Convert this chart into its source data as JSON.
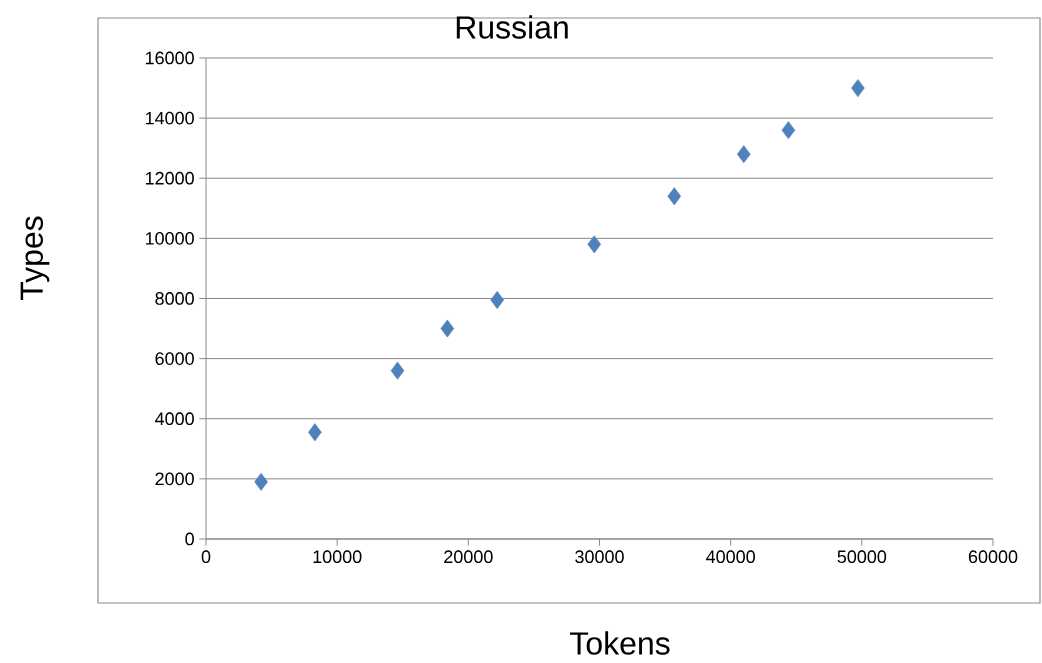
{
  "chart_data": {
    "type": "scatter",
    "title": "Russian",
    "xlabel": "Tokens",
    "ylabel": "Types",
    "x": [
      4200,
      8300,
      14600,
      18400,
      22200,
      29600,
      35700,
      41000,
      44400,
      49700
    ],
    "series": [
      {
        "color": "#4f81bd",
        "values": [
          1900,
          3550,
          5600,
          7000,
          7950,
          9800,
          11400,
          12800,
          13600,
          15000
        ]
      }
    ],
    "xlim": [
      0,
      60000
    ],
    "xticks": [
      0,
      10000,
      20000,
      30000,
      40000,
      50000,
      60000
    ],
    "ylim": [
      0,
      16000
    ],
    "yticks": [
      0,
      2000,
      4000,
      6000,
      8000,
      10000,
      12000,
      14000,
      16000
    ],
    "grid": "y",
    "marker": "diamond"
  }
}
